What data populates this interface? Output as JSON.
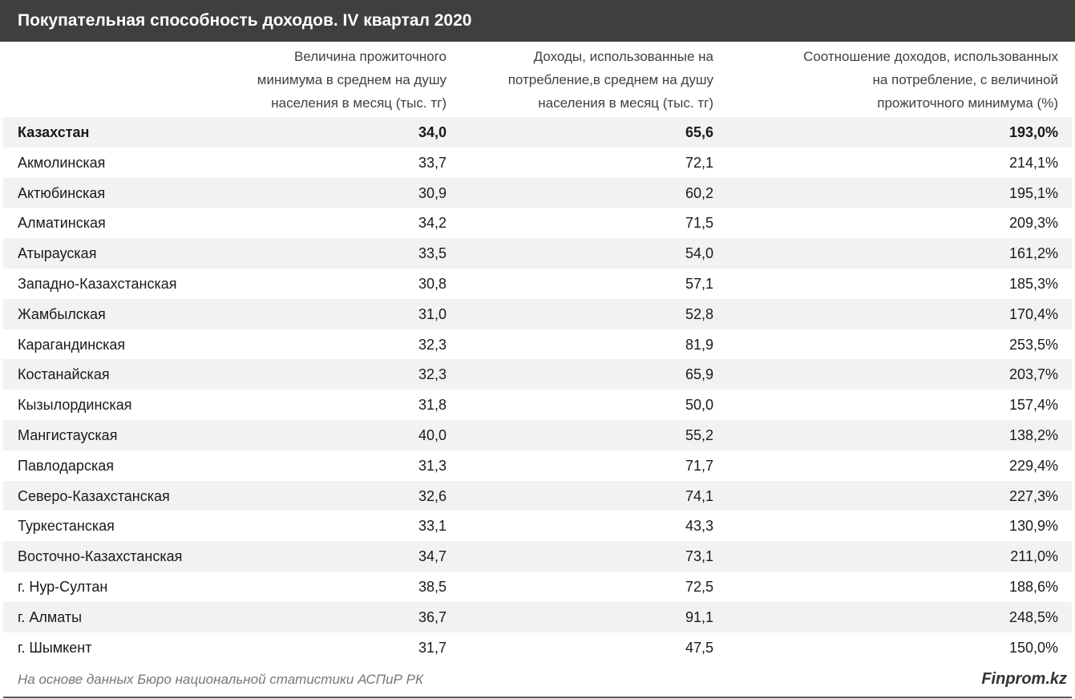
{
  "header": {
    "title": "Покупательная способность доходов. IV квартал 2020"
  },
  "table": {
    "columns": [
      [
        "Величина прожиточного",
        "минимума в среднем на душу",
        "населения в месяц (тыс. тг)"
      ],
      [
        "Доходы, использованные на",
        "потребление,в среднем на душу",
        "населения в месяц (тыс. тг)"
      ],
      [
        "Соотношение доходов, использованных",
        "на потребление, с величиной",
        "прожиточного минимума (%)"
      ]
    ],
    "rows": [
      [
        "Казахстан",
        "34,0",
        "65,6",
        "193,0%"
      ],
      [
        "Акмолинская",
        "33,7",
        "72,1",
        "214,1%"
      ],
      [
        "Актюбинская",
        "30,9",
        "60,2",
        "195,1%"
      ],
      [
        "Алматинская",
        "34,2",
        "71,5",
        "209,3%"
      ],
      [
        "Атырауская",
        "33,5",
        "54,0",
        "161,2%"
      ],
      [
        "Западно-Казахстанская",
        "30,8",
        "57,1",
        "185,3%"
      ],
      [
        "Жамбылская",
        "31,0",
        "52,8",
        "170,4%"
      ],
      [
        "Карагандинская",
        "32,3",
        "81,9",
        "253,5%"
      ],
      [
        "Костанайская",
        "32,3",
        "65,9",
        "203,7%"
      ],
      [
        "Кызылординская",
        "31,8",
        "50,0",
        "157,4%"
      ],
      [
        "Мангистауская",
        "40,0",
        "55,2",
        "138,2%"
      ],
      [
        "Павлодарская",
        "31,3",
        "71,7",
        "229,4%"
      ],
      [
        "Северо-Казахстанская",
        "32,6",
        "74,1",
        "227,3%"
      ],
      [
        "Туркестанская",
        "33,1",
        "43,3",
        "130,9%"
      ],
      [
        "Восточно-Казахстанская",
        "34,7",
        "73,1",
        "211,0%"
      ],
      [
        "г. Нур-Султан",
        "38,5",
        "72,5",
        "188,6%"
      ],
      [
        "г. Алматы",
        "36,7",
        "91,1",
        "248,5%"
      ],
      [
        "г. Шымкент",
        "31,7",
        "47,5",
        "150,0%"
      ]
    ]
  },
  "footer": {
    "source": "На основе данных Бюро национальной статистики АСПиР РК",
    "brand": "Finprom.kz"
  }
}
